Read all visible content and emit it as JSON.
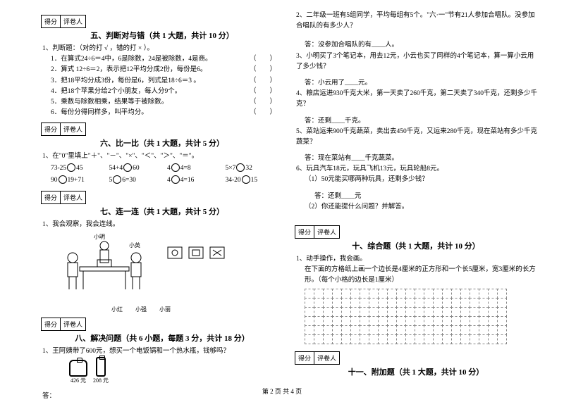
{
  "scorebox": {
    "score": "得分",
    "reviewer": "评卷人"
  },
  "section5": {
    "title": "五、判断对与错（共 1 大题，共计 10 分）",
    "stem": "1、判断题：（对的打 √ ，错的打 × ）。",
    "items": [
      "1．在算式24÷6＝4中，6是除数，24是被除数，4是商。",
      "2．算式 12÷6＝2，表示把12平均分成2份，每份是6。",
      "3．把18平均分成3份，每份是6，列式是18÷6＝3 。",
      "4．把18个苹果分给2个小朋友，每人分9个。",
      "5．乘数与除数相乘，结果等于被除数。",
      "6．每份分得同样多，叫平均分。"
    ],
    "paren": "（　　）"
  },
  "section6": {
    "title": "六、比一比（共 1 大题，共计 5 分）",
    "stem": "1、在\"0\"里填上\"＋\"、\"－\"、\"×\"、\"＜\"、\"＞\"、\"＝\"。",
    "row1": [
      "73-25",
      "45",
      "54+4",
      "60",
      "4",
      "4=8",
      "5×7",
      "32"
    ],
    "row2": [
      "90",
      "19+71",
      "5",
      "6=30",
      "4",
      "4=16",
      "34-20",
      "15"
    ]
  },
  "section7": {
    "title": "七、连一连（共 1 大题，共计 5 分）",
    "stem": "1、我会观察，我会连线。",
    "names": [
      "小红",
      "小强",
      "小丽"
    ],
    "topnames": [
      "小明",
      "小英"
    ]
  },
  "section8": {
    "title": "八、解决问题（共 6 小题，每题 3 分，共计 18 分）",
    "q1": "1、王阿姨带了600元，想买一个电饭锅和一个热水瓶，钱够吗？",
    "prices": [
      "426 元",
      "208 元"
    ],
    "ans": "答："
  },
  "rightTop": {
    "q2": "2、二年级一班有5组同学，平均每组有5个。\"六·一\"节有21人参加合唱队。没参加合唱队的有多少人？",
    "a2": "答：没参加合唱队的有____人。",
    "q3": "3、小明买了3个笔记本，用去12元，小云也买了同样的4个笔记本，算一算小云用了多少钱？",
    "a3": "答：小云用了____元。",
    "q4": "4、粮店运进930千克大米，第一天卖了260千克，第二天卖了340千克，还剩多少千克？",
    "a4": "答：还剩____千克。",
    "q5": "5、菜站运来900千克蔬菜，卖出去450千克，又运来280千克，现在菜站有多少千克蔬菜？",
    "a5": "答：现在菜站有____千克蔬菜。",
    "q6": "6、玩具汽车18元，玩具飞机13元，玩具轮船8元。",
    "q6a": "（1）50元能买哪两种玩具，还剩多少钱？",
    "a6a": "答：还剩____元",
    "q6b": "（2）你还能提什么问题？并解答。"
  },
  "section10": {
    "title": "十、综合题（共 1 大题，共计 10 分）",
    "stem": "1、动手操作，我会画。",
    "desc": "在下面的方格纸上画一个边长是4厘米的正方形和一个长5厘米，宽3厘米的长方形。（每个小格的边长是1厘米）",
    "grid": {
      "rows": 6,
      "cols": 22
    }
  },
  "section11": {
    "title": "十一、附加题（共 1 大题，共计 10 分）"
  },
  "footer": "第 2 页 共 4 页"
}
